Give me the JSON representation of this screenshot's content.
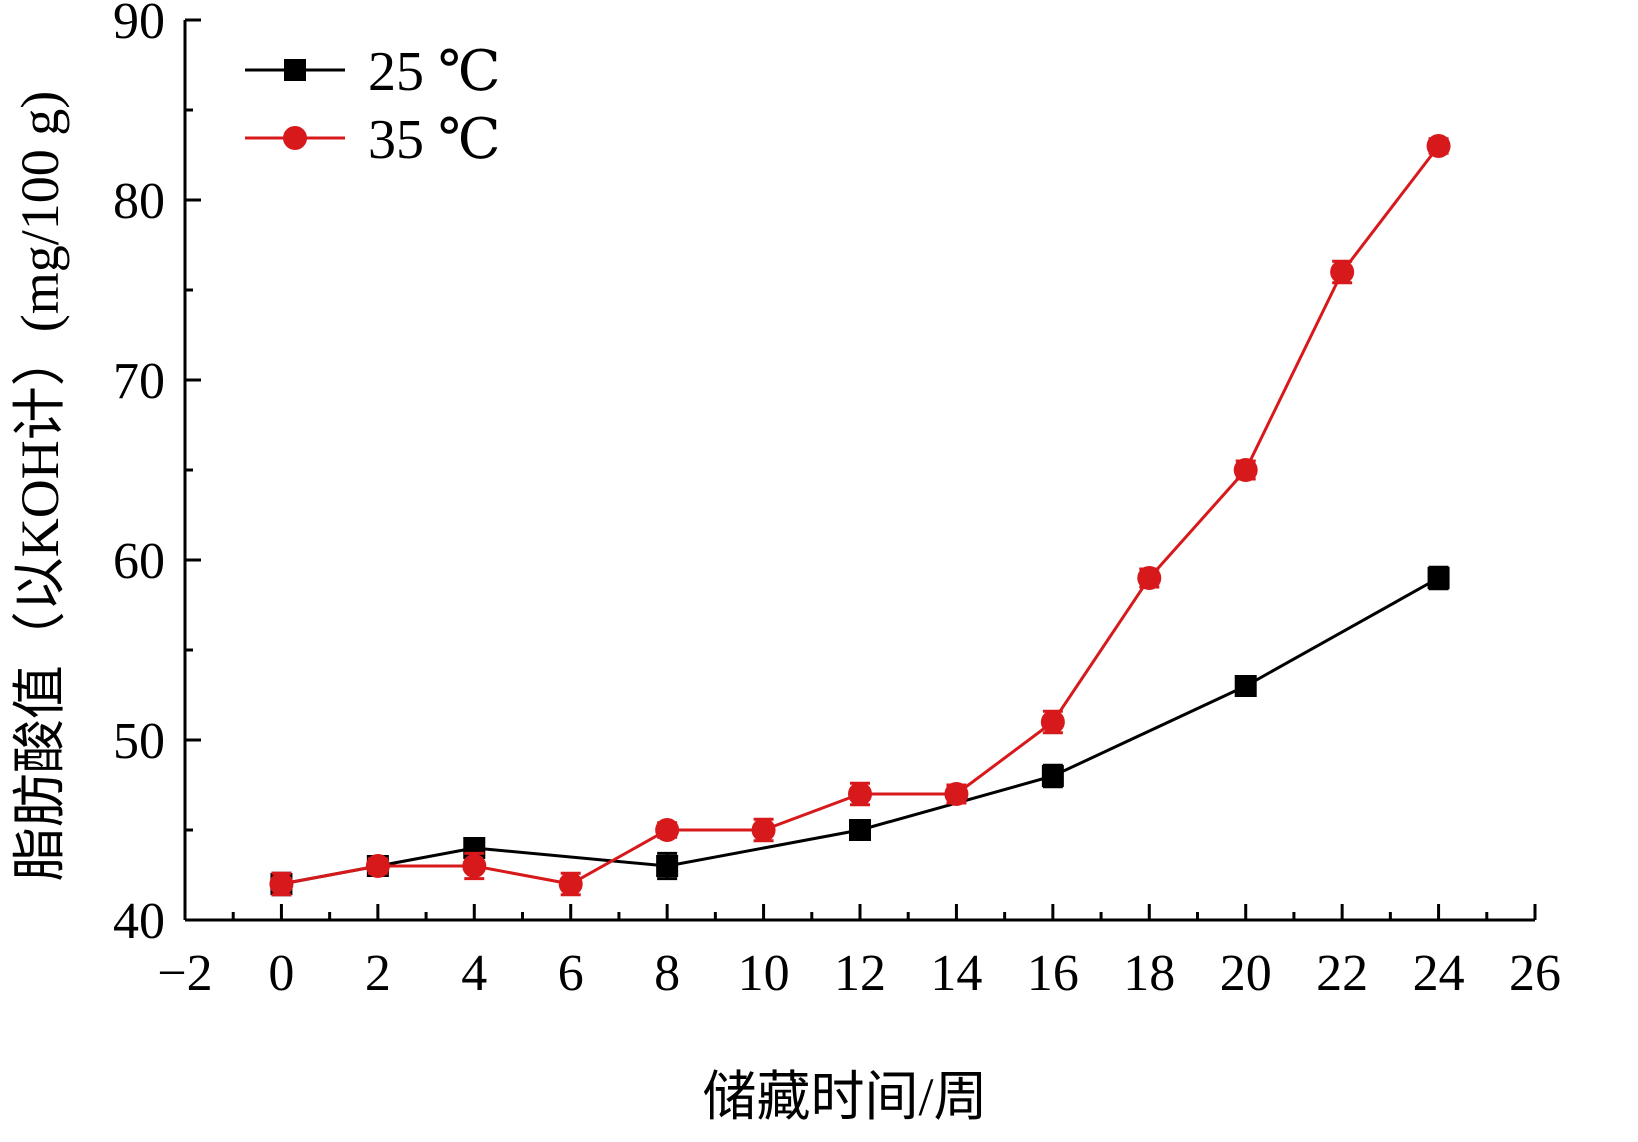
{
  "chart_data": {
    "type": "line",
    "title": "",
    "xlabel": "储藏时间/周",
    "ylabel": "脂肪酸值（以KOH计）(mg/100 g)",
    "xlim": [
      -2,
      26
    ],
    "ylim": [
      40,
      90
    ],
    "x_ticks": [
      -2,
      0,
      2,
      4,
      6,
      8,
      10,
      12,
      14,
      16,
      18,
      20,
      22,
      24,
      26
    ],
    "y_ticks": [
      40,
      50,
      60,
      70,
      80,
      90
    ],
    "grid": false,
    "legend_position": "top-left",
    "series": [
      {
        "name": "25 ℃",
        "color": "#000000",
        "marker": "square",
        "x": [
          0,
          2,
          4,
          8,
          12,
          16,
          20,
          24
        ],
        "y": [
          42,
          43,
          44,
          43,
          45,
          48,
          53,
          59
        ],
        "error": [
          0.6,
          0.4,
          0.5,
          0.7,
          0.4,
          0.6,
          0.5,
          0.6
        ]
      },
      {
        "name": "35 ℃",
        "color": "#d7191c",
        "marker": "circle",
        "x": [
          0,
          2,
          4,
          6,
          8,
          10,
          12,
          14,
          16,
          18,
          20,
          22,
          24
        ],
        "y": [
          42,
          43,
          43,
          42,
          45,
          45,
          47,
          47,
          51,
          59,
          65,
          76,
          83
        ],
        "error": [
          0.6,
          0.4,
          0.7,
          0.6,
          0.4,
          0.6,
          0.6,
          0.5,
          0.6,
          0.5,
          0.5,
          0.6,
          0.4
        ]
      }
    ]
  }
}
